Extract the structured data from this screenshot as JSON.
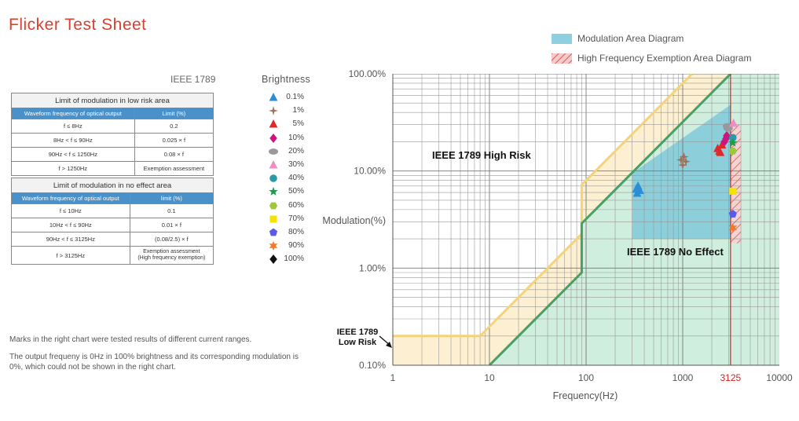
{
  "title": "Flicker Test Sheet",
  "standard_label": "IEEE 1789",
  "table_low_risk": {
    "title": "Limit of modulation in low risk area",
    "header": [
      "Waveform frequency of optical output",
      "Limit (%)"
    ],
    "rows": [
      [
        "f ≤ 8Hz",
        "0.2"
      ],
      [
        "8Hz < f ≤ 90Hz",
        "0.025 × f"
      ],
      [
        "90Hz < f ≤ 1250Hz",
        "0.08 × f"
      ],
      [
        "f > 1250Hz",
        "Exemption assessment"
      ]
    ]
  },
  "table_no_effect": {
    "title": "Limit of modulation in no effect area",
    "header": [
      "Waveform frequency of optical output",
      "limit (%)"
    ],
    "rows": [
      [
        "f ≤ 10Hz",
        "0.1"
      ],
      [
        "10Hz < f ≤ 90Hz",
        "0.01 × f"
      ],
      [
        "90Hz < f ≤ 3125Hz",
        "(0.08/2.5) × f"
      ],
      [
        "f > 3125Hz",
        "Exemption assessment\n(High frequency exemption)"
      ]
    ]
  },
  "brightness_legend": {
    "title": "Brightness",
    "items": [
      {
        "label": "0.1%",
        "shape": "triangle",
        "color": "#2a8fd6"
      },
      {
        "label": "1%",
        "shape": "four-point-star",
        "color": "#a0705a"
      },
      {
        "label": "5%",
        "shape": "triangle",
        "color": "#e0282a"
      },
      {
        "label": "10%",
        "shape": "diamond",
        "color": "#c8177e"
      },
      {
        "label": "20%",
        "shape": "ellipse",
        "color": "#999999"
      },
      {
        "label": "30%",
        "shape": "triangle",
        "color": "#f08cc4"
      },
      {
        "label": "40%",
        "shape": "circle",
        "color": "#2a9aa8"
      },
      {
        "label": "50%",
        "shape": "star",
        "color": "#199d4a"
      },
      {
        "label": "60%",
        "shape": "hexagon",
        "color": "#9cc83a"
      },
      {
        "label": "70%",
        "shape": "square",
        "color": "#f5e400"
      },
      {
        "label": "80%",
        "shape": "pentagon",
        "color": "#5a5ae6"
      },
      {
        "label": "90%",
        "shape": "six-point-star",
        "color": "#f07a2a"
      },
      {
        "label": "100%",
        "shape": "diamond",
        "color": "#111111"
      }
    ]
  },
  "notes": [
    "Marks in the right chart were tested results of different current ranges.",
    "The output frequeny is 0Hz in 100% brightness and its corresponding modulation is 0%, which could not be shown in the right chart."
  ],
  "area_legend": [
    {
      "label": "Modulation Area Diagram",
      "color": "#8ecfe0"
    },
    {
      "label": "High Frequency Exemption Area Diagram",
      "color": "#f0a8a8"
    }
  ],
  "chart_data": {
    "type": "scatter",
    "xlabel": "Frequency(Hz)",
    "ylabel": "Modulation(%)",
    "xscale": "log",
    "yscale": "log",
    "xlim": [
      1,
      10000
    ],
    "ylim": [
      0.1,
      100
    ],
    "xticks": [
      1,
      10,
      100,
      1000,
      3125,
      10000
    ],
    "xtick_labels": [
      "1",
      "10",
      "100",
      "1000",
      "3125",
      "10000"
    ],
    "yticks": [
      0.1,
      1,
      10,
      100
    ],
    "ytick_labels": [
      "0.10%",
      "1.00%",
      "10.00%",
      "100.00%"
    ],
    "grid": true,
    "annotations": [
      "IEEE 1789 High Risk",
      "IEEE 1789 No Effect",
      "IEEE 1789\nLow Risk"
    ],
    "low_risk_boundary": [
      [
        1,
        0.2
      ],
      [
        8,
        0.2
      ],
      [
        90,
        2.25
      ],
      [
        90,
        7.2
      ],
      [
        1250,
        100
      ]
    ],
    "no_effect_boundary": [
      [
        10,
        0.1
      ],
      [
        90,
        0.9
      ],
      [
        90,
        2.88
      ],
      [
        3125,
        100
      ]
    ],
    "exemption_frequency": 3125,
    "series": [
      {
        "name": "0.1%",
        "points": [
          [
            330,
            6.5
          ],
          [
            345,
            7.0
          ],
          [
            360,
            6.3
          ],
          [
            338,
            5.9
          ]
        ]
      },
      {
        "name": "1%",
        "points": [
          [
            960,
            13.0
          ],
          [
            1000,
            11.5
          ],
          [
            1080,
            12.5
          ],
          [
            1030,
            14.0
          ]
        ]
      },
      {
        "name": "5%",
        "points": [
          [
            2300,
            17.0
          ],
          [
            2450,
            15.5
          ],
          [
            2550,
            18.5
          ],
          [
            2400,
            16.0
          ]
        ]
      },
      {
        "name": "10%",
        "points": [
          [
            2700,
            20.0
          ],
          [
            2850,
            23.0
          ],
          [
            2800,
            21.5
          ]
        ]
      },
      {
        "name": "20%",
        "points": [
          [
            2900,
            29.0
          ],
          [
            2950,
            27.5
          ]
        ]
      },
      {
        "name": "30%",
        "points": [
          [
            3350,
            31.0
          ]
        ]
      },
      {
        "name": "40%",
        "points": [
          [
            3300,
            22.0
          ]
        ]
      },
      {
        "name": "50%",
        "points": [
          [
            3300,
            19.5
          ]
        ]
      },
      {
        "name": "60%",
        "points": [
          [
            3300,
            16.0
          ]
        ]
      },
      {
        "name": "70%",
        "points": [
          [
            3300,
            6.2
          ]
        ]
      },
      {
        "name": "80%",
        "points": [
          [
            3300,
            3.6
          ]
        ]
      },
      {
        "name": "90%",
        "points": [
          [
            3300,
            2.6
          ]
        ]
      }
    ]
  }
}
